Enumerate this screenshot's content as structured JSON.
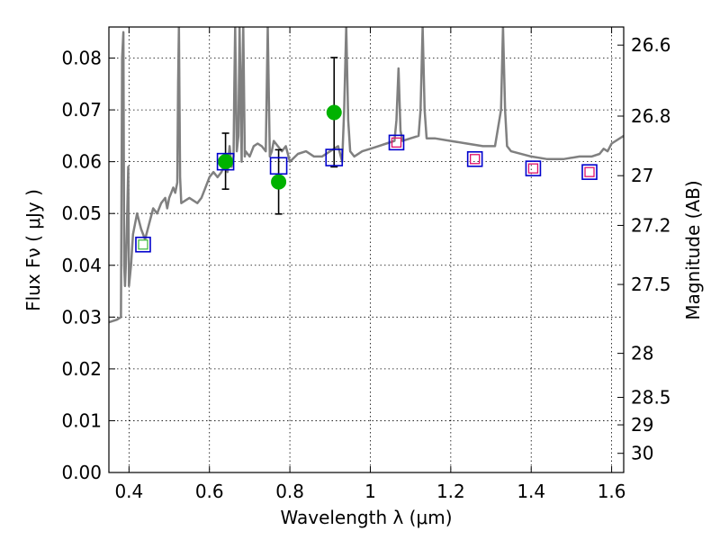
{
  "chart_data": {
    "type": "scatter",
    "xlabel": "Wavelength  λ (μm)",
    "ylabel": "Flux  Fν  ( μJy )",
    "y2label": "Magnitude (AB)",
    "xlim": [
      0.35,
      1.63
    ],
    "ylim": [
      0.0,
      0.086
    ],
    "grid": true,
    "x_ticks": [
      0.4,
      0.6,
      0.8,
      1.0,
      1.2,
      1.4,
      1.6
    ],
    "x_tick_labels": [
      "0.4",
      "0.6",
      "0.8",
      "1",
      "1.2",
      "1.4",
      "1.6"
    ],
    "y_ticks": [
      0.0,
      0.01,
      0.02,
      0.03,
      0.04,
      0.05,
      0.06,
      0.07,
      0.08
    ],
    "y_tick_labels": [
      "0.00",
      "0.01",
      "0.02",
      "0.03",
      "0.04",
      "0.05",
      "0.06",
      "0.07",
      "0.08"
    ],
    "magnitude_ticks": [
      {
        "label": "26.6",
        "flux": 0.0825
      },
      {
        "label": "26.8",
        "flux": 0.0688
      },
      {
        "label": "27",
        "flux": 0.0573
      },
      {
        "label": "27.2",
        "flux": 0.0477
      },
      {
        "label": "27.5",
        "flux": 0.0363
      },
      {
        "label": "28",
        "flux": 0.023
      },
      {
        "label": "28.5",
        "flux": 0.0145
      },
      {
        "label": "29",
        "flux": 0.0092
      },
      {
        "label": "30",
        "flux": 0.0037
      }
    ],
    "series": [
      {
        "kind": "line",
        "color": "#808080",
        "x": [
          0.35,
          0.37,
          0.38,
          0.383,
          0.386,
          0.388,
          0.39,
          0.392,
          0.395,
          0.398,
          0.4,
          0.405,
          0.41,
          0.42,
          0.43,
          0.44,
          0.45,
          0.46,
          0.47,
          0.48,
          0.49,
          0.495,
          0.5,
          0.505,
          0.51,
          0.515,
          0.52,
          0.522,
          0.524,
          0.527,
          0.53,
          0.55,
          0.57,
          0.58,
          0.59,
          0.6,
          0.61,
          0.62,
          0.63,
          0.64,
          0.645,
          0.65,
          0.655,
          0.66,
          0.662,
          0.664,
          0.668,
          0.672,
          0.675,
          0.68,
          0.682,
          0.684,
          0.688,
          0.69,
          0.7,
          0.71,
          0.72,
          0.73,
          0.74,
          0.745,
          0.75,
          0.755,
          0.76,
          0.77,
          0.78,
          0.79,
          0.8,
          0.82,
          0.84,
          0.86,
          0.88,
          0.9,
          0.92,
          0.93,
          0.935,
          0.94,
          0.945,
          0.95,
          0.96,
          0.98,
          1.0,
          1.02,
          1.04,
          1.06,
          1.065,
          1.07,
          1.075,
          1.08,
          1.1,
          1.12,
          1.125,
          1.13,
          1.135,
          1.14,
          1.16,
          1.2,
          1.24,
          1.28,
          1.31,
          1.325,
          1.33,
          1.335,
          1.34,
          1.35,
          1.4,
          1.44,
          1.48,
          1.52,
          1.55,
          1.57,
          1.58,
          1.59,
          1.6,
          1.63
        ],
        "y": [
          0.029,
          0.0295,
          0.03,
          0.08,
          0.085,
          0.04,
          0.036,
          0.04,
          0.048,
          0.059,
          0.036,
          0.04,
          0.046,
          0.05,
          0.047,
          0.045,
          0.048,
          0.051,
          0.05,
          0.052,
          0.053,
          0.051,
          0.053,
          0.054,
          0.055,
          0.054,
          0.056,
          0.075,
          0.086,
          0.057,
          0.052,
          0.053,
          0.052,
          0.053,
          0.055,
          0.057,
          0.058,
          0.057,
          0.058,
          0.06,
          0.058,
          0.063,
          0.059,
          0.061,
          0.075,
          0.086,
          0.062,
          0.065,
          0.086,
          0.06,
          0.077,
          0.086,
          0.061,
          0.062,
          0.061,
          0.063,
          0.0635,
          0.063,
          0.062,
          0.086,
          0.061,
          0.062,
          0.064,
          0.063,
          0.062,
          0.063,
          0.06,
          0.0615,
          0.062,
          0.061,
          0.061,
          0.062,
          0.063,
          0.06,
          0.07,
          0.086,
          0.068,
          0.062,
          0.061,
          0.062,
          0.0625,
          0.063,
          0.0635,
          0.064,
          0.068,
          0.078,
          0.066,
          0.064,
          0.0645,
          0.065,
          0.07,
          0.086,
          0.07,
          0.0645,
          0.0645,
          0.064,
          0.0635,
          0.063,
          0.063,
          0.07,
          0.086,
          0.07,
          0.063,
          0.062,
          0.061,
          0.0605,
          0.0605,
          0.061,
          0.061,
          0.0615,
          0.0625,
          0.062,
          0.0635,
          0.065
        ]
      },
      {
        "kind": "scatter",
        "marker": "square-open",
        "color": "#0000cc",
        "x": [
          0.435,
          0.64,
          0.772,
          0.91,
          1.065,
          1.26,
          1.405,
          1.545
        ],
        "y": [
          0.044,
          0.06,
          0.0592,
          0.0608,
          0.0637,
          0.0605,
          0.0587,
          0.058
        ]
      },
      {
        "kind": "scatter",
        "marker": "circle",
        "color": "#00b200",
        "x": [
          0.64,
          0.772,
          0.91
        ],
        "y": [
          0.06,
          0.0561,
          0.0695
        ],
        "yerr": [
          [
            0.0547,
            0.0655
          ],
          [
            0.0499,
            0.0623
          ],
          [
            0.059,
            0.0801
          ]
        ]
      },
      {
        "kind": "scatter",
        "marker": "square-small-open",
        "color": "#e0106a",
        "x": [
          1.065,
          1.26,
          1.405,
          1.545
        ],
        "y": [
          0.0637,
          0.0605,
          0.0587,
          0.058
        ]
      },
      {
        "kind": "scatter",
        "marker": "square-small-open",
        "color": "#44bb44",
        "x": [
          0.435
        ],
        "y": [
          0.044
        ]
      }
    ]
  }
}
